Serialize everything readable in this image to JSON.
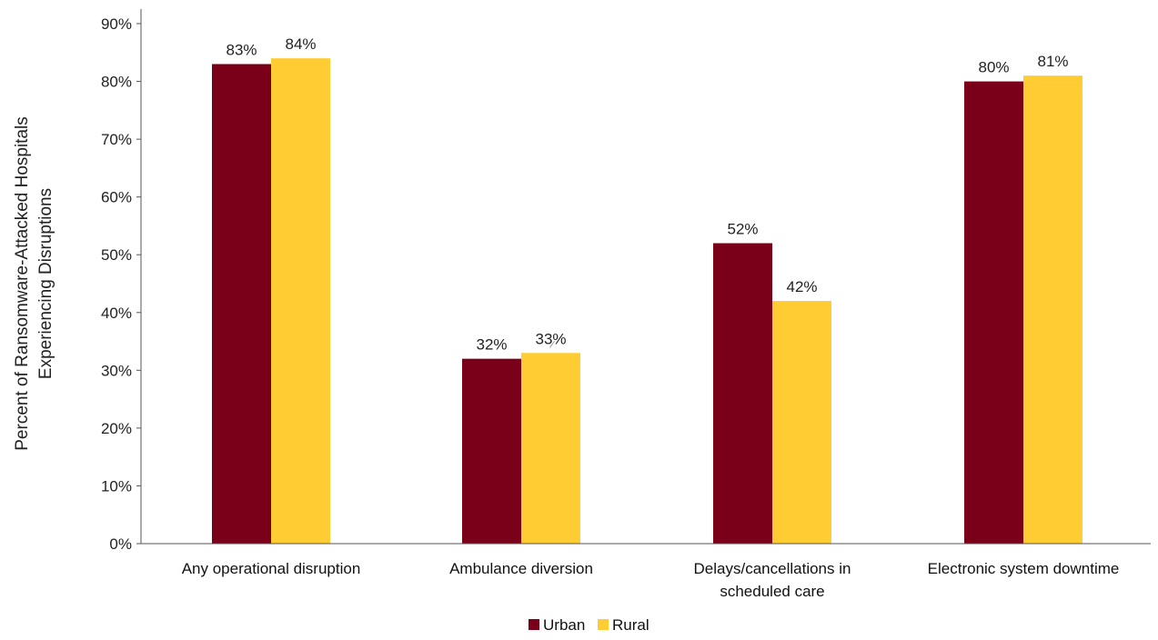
{
  "chart_data": {
    "type": "bar",
    "categories": [
      [
        "Any operational disruption"
      ],
      [
        "Ambulance diversion"
      ],
      [
        "Delays/cancellations in",
        "scheduled care"
      ],
      [
        "Electronic system downtime"
      ]
    ],
    "series": [
      {
        "name": "Urban",
        "color": "#7a0019",
        "values": [
          83,
          32,
          52,
          80
        ],
        "labels": [
          "83%",
          "32%",
          "52%",
          "80%"
        ]
      },
      {
        "name": "Rural",
        "color": "#ffcc33",
        "values": [
          84,
          33,
          42,
          81
        ],
        "labels": [
          "84%",
          "33%",
          "42%",
          "81%"
        ]
      }
    ],
    "ylabel": [
      "Percent of Ransomware-Attacked Hospitals",
      "Experiencing Disruptions"
    ],
    "ylim": [
      0,
      90
    ],
    "yticks": [
      0,
      10,
      20,
      30,
      40,
      50,
      60,
      70,
      80,
      90
    ],
    "ytick_labels": [
      "0%",
      "10%",
      "20%",
      "30%",
      "40%",
      "50%",
      "60%",
      "70%",
      "80%",
      "90%"
    ],
    "grid": false,
    "legend_position": "bottom-center"
  }
}
